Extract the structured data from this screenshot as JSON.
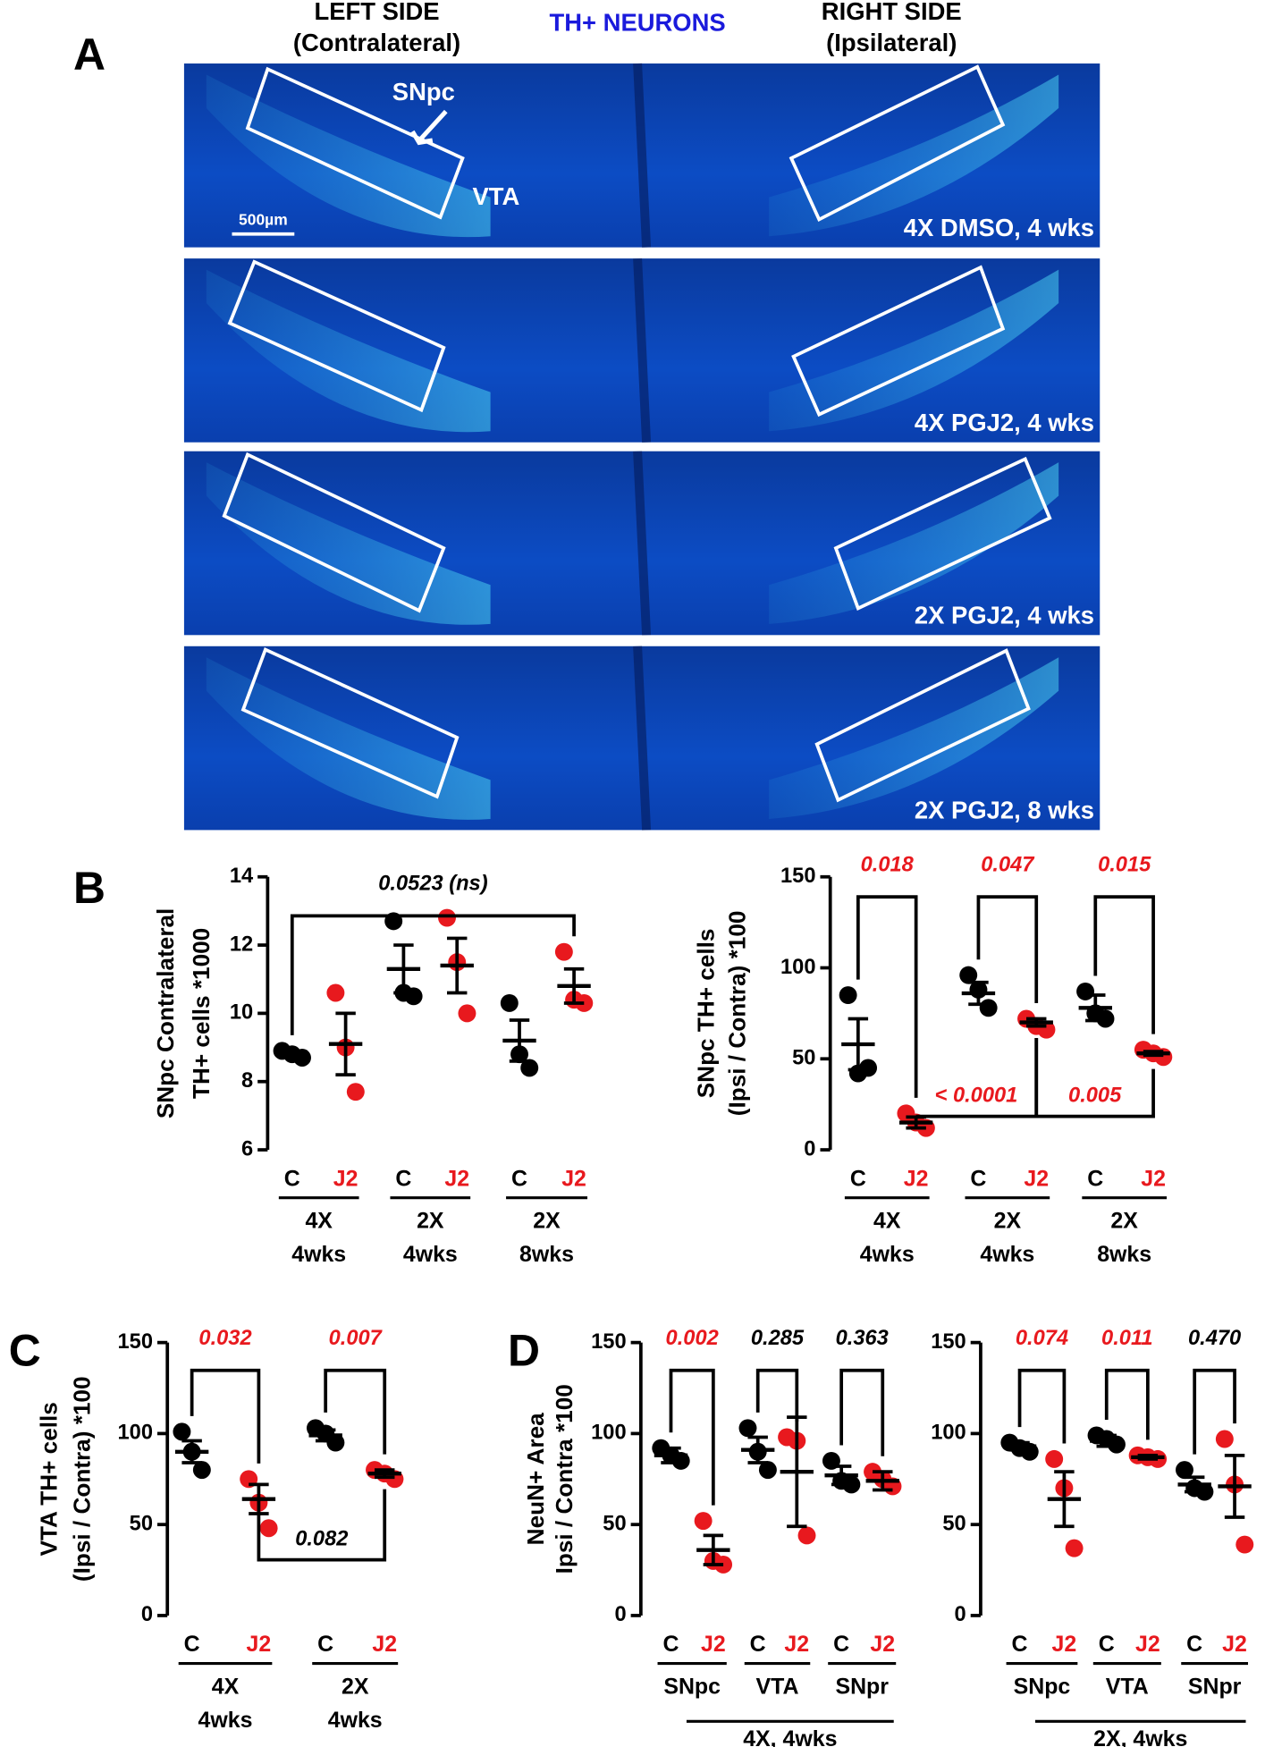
{
  "figure": {
    "panel_labels": [
      "A",
      "B",
      "C",
      "D"
    ],
    "header": {
      "left": [
        "LEFT SIDE",
        "(Contralateral)"
      ],
      "center": "TH+ NEURONS",
      "right": [
        "RIGHT SIDE",
        "(Ipsilateral)"
      ]
    },
    "image_labels": {
      "snpc": "SNpc",
      "vta": "VTA",
      "scale": "500µm"
    },
    "panels": [
      "4X DMSO, 4 wks",
      "4X PGJ2, 4 wks",
      "2X PGJ2, 4 wks",
      "2X PGJ2, 8 wks"
    ]
  },
  "chart_data": [
    {
      "type": "dot",
      "ylabel": [
        "SNpc Contralateral",
        "TH+ cells *1000"
      ],
      "ylim": [
        6,
        14
      ],
      "yticks": [
        6,
        8,
        10,
        12,
        14
      ],
      "categories": [
        "C",
        "J2",
        "C",
        "J2",
        "C",
        "J2"
      ],
      "colors": [
        "#000000",
        "#e8191e",
        "#000000",
        "#e8191e",
        "#000000",
        "#e8191e"
      ],
      "points": [
        [
          8.9,
          8.7,
          8.8
        ],
        [
          10.6,
          7.7,
          9.0
        ],
        [
          12.7,
          10.5,
          10.6
        ],
        [
          12.8,
          10.0,
          11.5
        ],
        [
          10.3,
          8.4,
          8.8
        ],
        [
          11.8,
          10.3,
          10.4
        ]
      ],
      "mean": [
        8.8,
        9.1,
        11.3,
        11.4,
        9.2,
        10.8
      ],
      "sem": [
        0.1,
        0.9,
        0.7,
        0.8,
        0.6,
        0.5
      ],
      "groups": [
        {
          "label": [
            "4X",
            "4wks"
          ],
          "from": 0,
          "to": 1
        },
        {
          "label": [
            "2X",
            "4wks"
          ],
          "from": 2,
          "to": 3
        },
        {
          "label": [
            "2X",
            "8wks"
          ],
          "from": 4,
          "to": 5
        }
      ],
      "brackets": [
        {
          "from": 0,
          "to": 5,
          "label": "0.0523 (ns)",
          "color": "#000000",
          "side": "top"
        }
      ]
    },
    {
      "type": "dot",
      "ylabel": [
        "SNpc TH+ cells",
        "(Ipsi / Contra) *100"
      ],
      "ylim": [
        0,
        150
      ],
      "yticks": [
        0,
        50,
        100,
        150
      ],
      "categories": [
        "C",
        "J2",
        "C",
        "J2",
        "C",
        "J2"
      ],
      "colors": [
        "#000000",
        "#e8191e",
        "#000000",
        "#e8191e",
        "#000000",
        "#e8191e"
      ],
      "points": [
        [
          85,
          45,
          42
        ],
        [
          20,
          12,
          15
        ],
        [
          96,
          78,
          88
        ],
        [
          72,
          66,
          68
        ],
        [
          87,
          72,
          75
        ],
        [
          55,
          51,
          53
        ]
      ],
      "mean": [
        58,
        15,
        86,
        70,
        78,
        53
      ],
      "sem": [
        14,
        3,
        6,
        2,
        7,
        1
      ],
      "groups": [
        {
          "label": [
            "4X",
            "4wks"
          ],
          "from": 0,
          "to": 1
        },
        {
          "label": [
            "2X",
            "4wks"
          ],
          "from": 2,
          "to": 3
        },
        {
          "label": [
            "2X",
            "8wks"
          ],
          "from": 4,
          "to": 5
        }
      ],
      "brackets": [
        {
          "from": 0,
          "to": 1,
          "label": "0.018",
          "color": "#e8191e",
          "side": "top"
        },
        {
          "from": 2,
          "to": 3,
          "label": "0.047",
          "color": "#e8191e",
          "side": "top"
        },
        {
          "from": 4,
          "to": 5,
          "label": "0.015",
          "color": "#e8191e",
          "side": "top"
        },
        {
          "from": 1,
          "to": 3,
          "label": "< 0.0001",
          "color": "#e8191e",
          "side": "bottom"
        },
        {
          "from": 3,
          "to": 5,
          "label": "0.005",
          "color": "#e8191e",
          "side": "bottom"
        }
      ]
    },
    {
      "type": "dot",
      "ylabel": [
        "VTA TH+ cells",
        "(Ipsi / Contra) *100"
      ],
      "ylim": [
        0,
        150
      ],
      "yticks": [
        0,
        50,
        100,
        150
      ],
      "categories": [
        "C",
        "J2",
        "C",
        "J2"
      ],
      "colors": [
        "#000000",
        "#e8191e",
        "#000000",
        "#e8191e"
      ],
      "points": [
        [
          101,
          80,
          90
        ],
        [
          75,
          48,
          62
        ],
        [
          103,
          95,
          100
        ],
        [
          80,
          75,
          78
        ]
      ],
      "mean": [
        90,
        64,
        99,
        78
      ],
      "sem": [
        6,
        8,
        3,
        2
      ],
      "groups": [
        {
          "label": [
            "4X",
            "4wks"
          ],
          "from": 0,
          "to": 1
        },
        {
          "label": [
            "2X",
            "4wks"
          ],
          "from": 2,
          "to": 3
        }
      ],
      "brackets": [
        {
          "from": 0,
          "to": 1,
          "label": "0.032",
          "color": "#e8191e",
          "side": "top"
        },
        {
          "from": 2,
          "to": 3,
          "label": "0.007",
          "color": "#e8191e",
          "side": "top"
        },
        {
          "from": 1,
          "to": 3,
          "label": "0.082",
          "color": "#000000",
          "side": "bottom"
        }
      ]
    },
    {
      "type": "dot",
      "ylabel": [
        "NeuN+ Area",
        "Ipsi / Contra *100"
      ],
      "ylim": [
        0,
        150
      ],
      "yticks": [
        0,
        50,
        100,
        150
      ],
      "categories": [
        "C",
        "J2",
        "C",
        "J2",
        "C",
        "J2"
      ],
      "colors": [
        "#000000",
        "#e8191e",
        "#000000",
        "#e8191e",
        "#000000",
        "#e8191e"
      ],
      "points": [
        [
          92,
          85,
          88
        ],
        [
          52,
          28,
          30
        ],
        [
          103,
          80,
          90
        ],
        [
          98,
          44,
          96
        ],
        [
          85,
          72,
          74
        ],
        [
          79,
          71,
          75
        ]
      ],
      "mean": [
        88,
        36,
        91,
        79,
        77,
        74
      ],
      "sem": [
        4,
        8,
        7,
        30,
        5,
        5
      ],
      "groups": [
        {
          "label": [
            "SNpc"
          ],
          "from": 0,
          "to": 1
        },
        {
          "label": [
            "VTA"
          ],
          "from": 2,
          "to": 3
        },
        {
          "label": [
            "SNpr"
          ],
          "from": 4,
          "to": 5
        }
      ],
      "supergroup": {
        "label": "4X, 4wks",
        "from": 0,
        "to": 5
      },
      "brackets": [
        {
          "from": 0,
          "to": 1,
          "label": "0.002",
          "color": "#e8191e",
          "side": "top"
        },
        {
          "from": 2,
          "to": 3,
          "label": "0.285",
          "color": "#000000",
          "side": "top"
        },
        {
          "from": 4,
          "to": 5,
          "label": "0.363",
          "color": "#000000",
          "side": "top"
        }
      ]
    },
    {
      "type": "dot",
      "ylim": [
        0,
        150
      ],
      "yticks": [
        0,
        50,
        100,
        150
      ],
      "categories": [
        "C",
        "J2",
        "C",
        "J2",
        "C",
        "J2"
      ],
      "colors": [
        "#000000",
        "#e8191e",
        "#000000",
        "#e8191e",
        "#000000",
        "#e8191e"
      ],
      "points": [
        [
          95,
          90,
          92
        ],
        [
          86,
          37,
          70
        ],
        [
          99,
          94,
          97
        ],
        [
          88,
          86,
          87
        ],
        [
          80,
          68,
          70
        ],
        [
          97,
          39,
          72
        ]
      ],
      "mean": [
        93,
        64,
        96,
        87,
        72,
        71
      ],
      "sem": [
        2,
        15,
        3,
        1,
        4,
        17
      ],
      "groups": [
        {
          "label": [
            "SNpc"
          ],
          "from": 0,
          "to": 1
        },
        {
          "label": [
            "VTA"
          ],
          "from": 2,
          "to": 3
        },
        {
          "label": [
            "SNpr"
          ],
          "from": 4,
          "to": 5
        }
      ],
      "supergroup": {
        "label": "2X, 4wks",
        "from": 0,
        "to": 5
      },
      "brackets": [
        {
          "from": 0,
          "to": 1,
          "label": "0.074",
          "color": "#e8191e",
          "side": "top"
        },
        {
          "from": 2,
          "to": 3,
          "label": "0.011",
          "color": "#e8191e",
          "side": "top"
        },
        {
          "from": 4,
          "to": 5,
          "label": "0.470",
          "color": "#000000",
          "side": "top"
        }
      ]
    }
  ]
}
